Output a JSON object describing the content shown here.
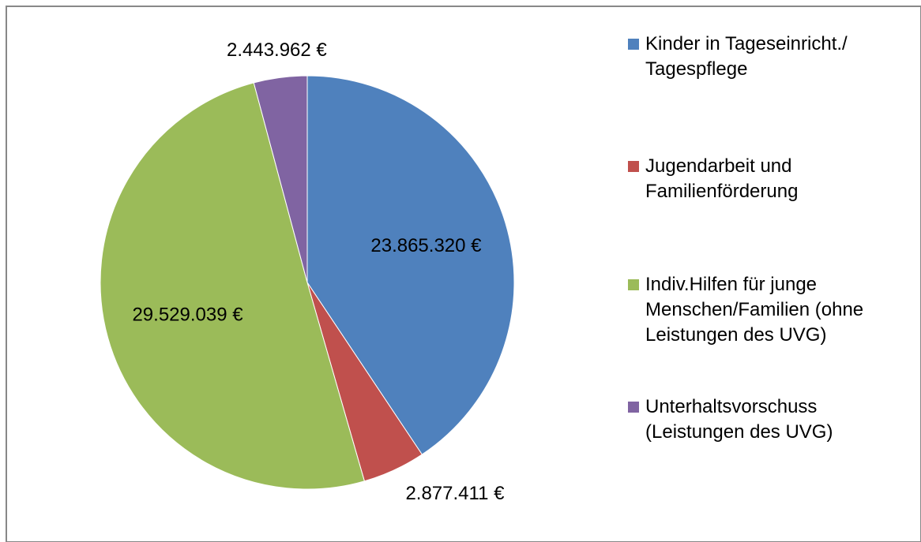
{
  "chart_data": {
    "type": "pie",
    "categories": [
      "Kinder in Tageseinricht./ Tagespflege",
      "Jugendarbeit und Familienförderung",
      "Indiv.Hilfen für junge Menschen/Familien (ohne Leistungen des UVG)",
      "Unterhaltsvorschuss (Leistungen des UVG)"
    ],
    "values": [
      23865320,
      2877411,
      29529039,
      2443962
    ],
    "value_labels": [
      "23.865.320 €",
      "2.877.411 €",
      "29.529.039 €",
      "2.443.962 €"
    ],
    "colors": [
      "#4f81bd",
      "#c0504d",
      "#9bbb59",
      "#8064a2"
    ],
    "legend": "right"
  }
}
